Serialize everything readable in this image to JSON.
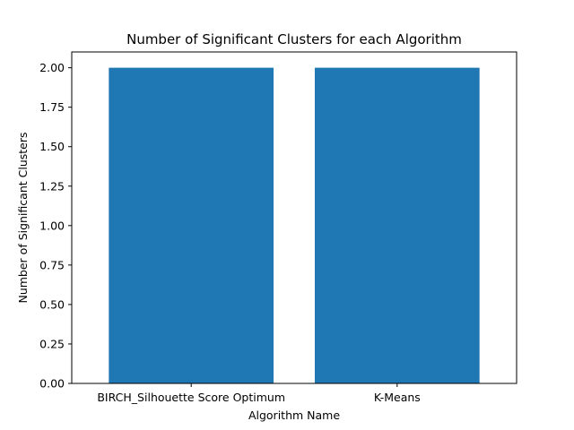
{
  "chart_data": {
    "type": "bar",
    "title": "Number of Significant Clusters for each Algorithm",
    "xlabel": "Algorithm Name",
    "ylabel": "Number of Significant Clusters",
    "categories": [
      "BIRCH_Silhouette Score Optimum",
      "K-Means"
    ],
    "values": [
      2,
      2
    ],
    "ylim": [
      0,
      2.1
    ],
    "yticks": [
      "0.00",
      "0.25",
      "0.50",
      "0.75",
      "1.00",
      "1.25",
      "1.50",
      "1.75",
      "2.00"
    ],
    "bar_color": "#1f77b4",
    "grid": false,
    "legend": "none"
  }
}
